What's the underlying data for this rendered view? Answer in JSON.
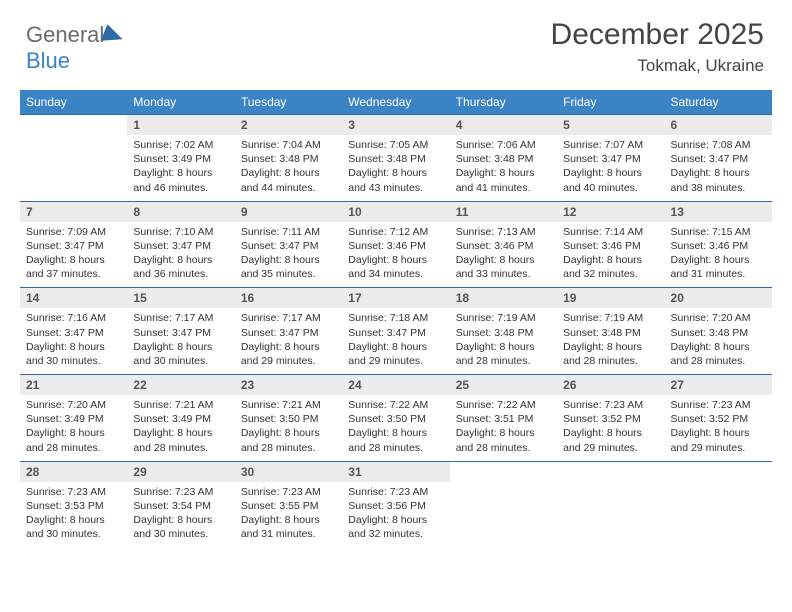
{
  "brand": {
    "part1": "General",
    "part2": "Blue"
  },
  "header": {
    "month": "December 2025",
    "location": "Tokmak, Ukraine"
  },
  "colors": {
    "header_bg": "#3a83c4",
    "row_border": "#2f6aa8",
    "daynum_bg": "#ececec"
  },
  "dayNames": [
    "Sunday",
    "Monday",
    "Tuesday",
    "Wednesday",
    "Thursday",
    "Friday",
    "Saturday"
  ],
  "weeks": [
    [
      {
        "empty": true
      },
      {
        "n": "1",
        "sr": "7:02 AM",
        "ss": "3:49 PM",
        "dl": "8 hours and 46 minutes."
      },
      {
        "n": "2",
        "sr": "7:04 AM",
        "ss": "3:48 PM",
        "dl": "8 hours and 44 minutes."
      },
      {
        "n": "3",
        "sr": "7:05 AM",
        "ss": "3:48 PM",
        "dl": "8 hours and 43 minutes."
      },
      {
        "n": "4",
        "sr": "7:06 AM",
        "ss": "3:48 PM",
        "dl": "8 hours and 41 minutes."
      },
      {
        "n": "5",
        "sr": "7:07 AM",
        "ss": "3:47 PM",
        "dl": "8 hours and 40 minutes."
      },
      {
        "n": "6",
        "sr": "7:08 AM",
        "ss": "3:47 PM",
        "dl": "8 hours and 38 minutes."
      }
    ],
    [
      {
        "n": "7",
        "sr": "7:09 AM",
        "ss": "3:47 PM",
        "dl": "8 hours and 37 minutes."
      },
      {
        "n": "8",
        "sr": "7:10 AM",
        "ss": "3:47 PM",
        "dl": "8 hours and 36 minutes."
      },
      {
        "n": "9",
        "sr": "7:11 AM",
        "ss": "3:47 PM",
        "dl": "8 hours and 35 minutes."
      },
      {
        "n": "10",
        "sr": "7:12 AM",
        "ss": "3:46 PM",
        "dl": "8 hours and 34 minutes."
      },
      {
        "n": "11",
        "sr": "7:13 AM",
        "ss": "3:46 PM",
        "dl": "8 hours and 33 minutes."
      },
      {
        "n": "12",
        "sr": "7:14 AM",
        "ss": "3:46 PM",
        "dl": "8 hours and 32 minutes."
      },
      {
        "n": "13",
        "sr": "7:15 AM",
        "ss": "3:46 PM",
        "dl": "8 hours and 31 minutes."
      }
    ],
    [
      {
        "n": "14",
        "sr": "7:16 AM",
        "ss": "3:47 PM",
        "dl": "8 hours and 30 minutes."
      },
      {
        "n": "15",
        "sr": "7:17 AM",
        "ss": "3:47 PM",
        "dl": "8 hours and 30 minutes."
      },
      {
        "n": "16",
        "sr": "7:17 AM",
        "ss": "3:47 PM",
        "dl": "8 hours and 29 minutes."
      },
      {
        "n": "17",
        "sr": "7:18 AM",
        "ss": "3:47 PM",
        "dl": "8 hours and 29 minutes."
      },
      {
        "n": "18",
        "sr": "7:19 AM",
        "ss": "3:48 PM",
        "dl": "8 hours and 28 minutes."
      },
      {
        "n": "19",
        "sr": "7:19 AM",
        "ss": "3:48 PM",
        "dl": "8 hours and 28 minutes."
      },
      {
        "n": "20",
        "sr": "7:20 AM",
        "ss": "3:48 PM",
        "dl": "8 hours and 28 minutes."
      }
    ],
    [
      {
        "n": "21",
        "sr": "7:20 AM",
        "ss": "3:49 PM",
        "dl": "8 hours and 28 minutes."
      },
      {
        "n": "22",
        "sr": "7:21 AM",
        "ss": "3:49 PM",
        "dl": "8 hours and 28 minutes."
      },
      {
        "n": "23",
        "sr": "7:21 AM",
        "ss": "3:50 PM",
        "dl": "8 hours and 28 minutes."
      },
      {
        "n": "24",
        "sr": "7:22 AM",
        "ss": "3:50 PM",
        "dl": "8 hours and 28 minutes."
      },
      {
        "n": "25",
        "sr": "7:22 AM",
        "ss": "3:51 PM",
        "dl": "8 hours and 28 minutes."
      },
      {
        "n": "26",
        "sr": "7:23 AM",
        "ss": "3:52 PM",
        "dl": "8 hours and 29 minutes."
      },
      {
        "n": "27",
        "sr": "7:23 AM",
        "ss": "3:52 PM",
        "dl": "8 hours and 29 minutes."
      }
    ],
    [
      {
        "n": "28",
        "sr": "7:23 AM",
        "ss": "3:53 PM",
        "dl": "8 hours and 30 minutes."
      },
      {
        "n": "29",
        "sr": "7:23 AM",
        "ss": "3:54 PM",
        "dl": "8 hours and 30 minutes."
      },
      {
        "n": "30",
        "sr": "7:23 AM",
        "ss": "3:55 PM",
        "dl": "8 hours and 31 minutes."
      },
      {
        "n": "31",
        "sr": "7:23 AM",
        "ss": "3:56 PM",
        "dl": "8 hours and 32 minutes."
      },
      {
        "empty": true
      },
      {
        "empty": true
      },
      {
        "empty": true
      }
    ]
  ],
  "labels": {
    "sunrise": "Sunrise:",
    "sunset": "Sunset:",
    "daylight": "Daylight:"
  }
}
